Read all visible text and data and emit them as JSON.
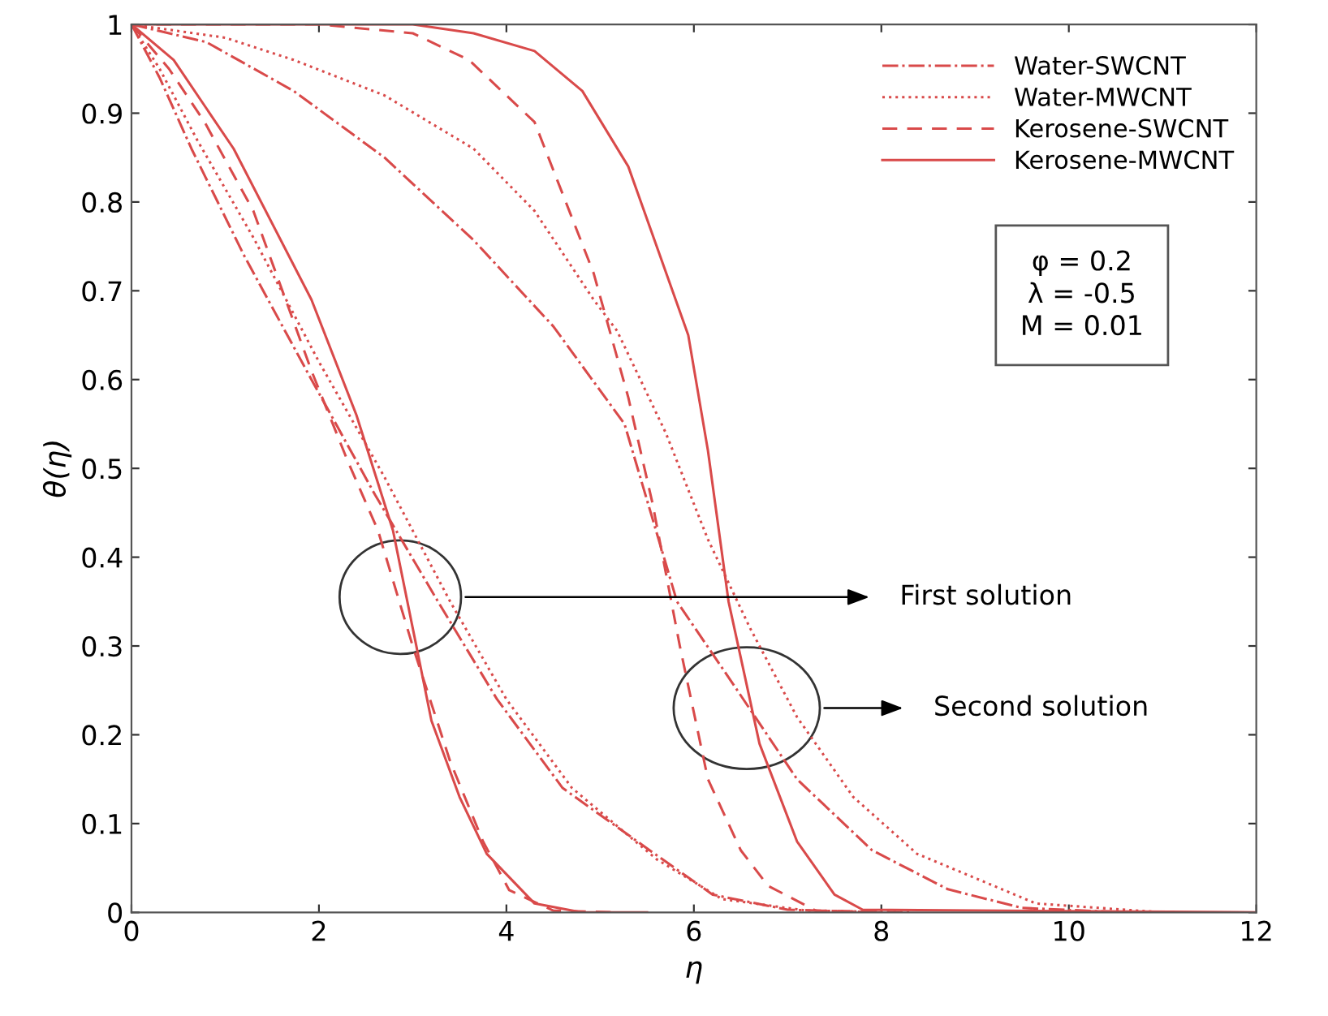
{
  "chart_data": {
    "type": "line",
    "xlabel": "η",
    "ylabel": "θ(η)",
    "xlim": [
      0,
      12
    ],
    "ylim": [
      0,
      1
    ],
    "xticks": [
      0,
      2,
      4,
      6,
      8,
      10,
      12
    ],
    "yticks": [
      0,
      0.1,
      0.2,
      0.3,
      0.4,
      0.5,
      0.6,
      0.7,
      0.8,
      0.9,
      1
    ],
    "grid": false,
    "legend": "top right",
    "marker": "none",
    "series": [
      {
        "name": "Water-SWCNT",
        "color": "#d94a4a",
        "line_style": "dashdot",
        "x": [
          0,
          0.3,
          0.64,
          1.2,
          1.92,
          2.6,
          3.27,
          3.9,
          4.6,
          5.58,
          6.2,
          7,
          8.0
        ],
        "values": [
          1,
          0.94,
          0.86,
          0.74,
          0.6,
          0.47,
          0.35,
          0.24,
          0.14,
          0.066,
          0.02,
          0.003,
          0.0
        ]
      },
      {
        "name": "Water-MWCNT",
        "color": "#d94a4a",
        "line_style": "dotted",
        "x": [
          0,
          0.3,
          0.7,
          1.3,
          2,
          2.7,
          3.4,
          4.0,
          4.7,
          5.6,
          6.3,
          7.2,
          8.3
        ],
        "values": [
          1,
          0.95,
          0.87,
          0.76,
          0.62,
          0.49,
          0.35,
          0.24,
          0.14,
          0.06,
          0.015,
          0.002,
          0
        ]
      },
      {
        "name": "Kerosene-SWCNT",
        "color": "#d94a4a",
        "line_style": "dashed",
        "x": [
          0,
          0.4,
          0.78,
          1.3,
          1.92,
          2.3,
          2.63,
          3.0,
          3.4,
          3.75,
          4.03,
          4.5,
          5.2
        ],
        "values": [
          1,
          0.95,
          0.89,
          0.79,
          0.61,
          0.51,
          0.43,
          0.3,
          0.17,
          0.08,
          0.025,
          0.002,
          0
        ]
      },
      {
        "name": "Kerosene-MWCNT",
        "color": "#d94a4a",
        "line_style": "solid",
        "x": [
          0,
          0.45,
          1.09,
          1.92,
          2.4,
          2.79,
          3.2,
          3.5,
          3.79,
          4.3,
          4.8,
          5.5
        ],
        "values": [
          1,
          0.96,
          0.86,
          0.69,
          0.56,
          0.43,
          0.216,
          0.13,
          0.066,
          0.01,
          0,
          0
        ]
      },
      {
        "color": "#d94a4a",
        "line_style": "dashdot",
        "x": [
          0,
          0.8,
          1.73,
          2.7,
          3.65,
          4.5,
          5.26,
          5.82,
          6.4,
          7.1,
          7.9,
          8.71,
          9.5,
          10.6
        ],
        "values": [
          1,
          0.98,
          0.925,
          0.85,
          0.757,
          0.66,
          0.55,
          0.35,
          0.26,
          0.15,
          0.07,
          0.026,
          0.005,
          0
        ]
      },
      {
        "color": "#d94a4a",
        "line_style": "dotted",
        "x": [
          0,
          1,
          1.73,
          2.7,
          3.65,
          4.3,
          4.93,
          5.18,
          5.7,
          6.15,
          6.6,
          7.1,
          7.7,
          8.38,
          9.65,
          11.0
        ],
        "values": [
          1,
          0.985,
          0.96,
          0.92,
          0.86,
          0.79,
          0.69,
          0.655,
          0.54,
          0.42,
          0.32,
          0.22,
          0.13,
          0.066,
          0.01,
          0
        ]
      },
      {
        "color": "#d94a4a",
        "line_style": "dashed",
        "x": [
          0,
          2,
          3,
          3.6,
          4.3,
          4.93,
          5.3,
          5.56,
          5.85,
          6.15,
          6.5,
          6.79,
          7.3,
          8.2
        ],
        "values": [
          1,
          1,
          0.99,
          0.96,
          0.89,
          0.72,
          0.58,
          0.46,
          0.3,
          0.15,
          0.07,
          0.03,
          0.002,
          0
        ]
      },
      {
        "color": "#d94a4a",
        "line_style": "solid",
        "x": [
          0,
          3,
          3.65,
          4.3,
          4.81,
          5.3,
          5.58,
          5.94,
          6.15,
          6.37,
          6.7,
          7.1,
          7.5,
          7.8,
          12.0
        ],
        "values": [
          1,
          1,
          0.99,
          0.97,
          0.925,
          0.84,
          0.757,
          0.65,
          0.52,
          0.35,
          0.19,
          0.08,
          0.02,
          0.003,
          0
        ]
      }
    ],
    "annotations": [
      "First solution",
      "Second solution",
      "φ = 0.2\nλ = -0.5\nM = 0.01"
    ]
  }
}
